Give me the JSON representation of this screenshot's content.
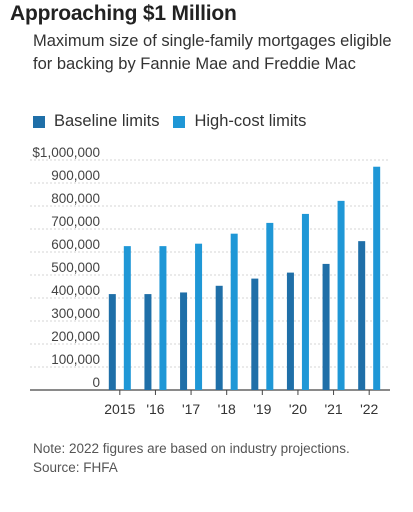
{
  "title": "Approaching $1 Million",
  "subtitle": "Maximum size of single-family mortgages eligible for backing by Fannie Mae and Freddie Mac",
  "note": "Note: 2022 figures are based on industry projections.",
  "source": "Source: FHFA",
  "colors": {
    "baseline": "#1f6fa8",
    "highcost": "#1f97d6",
    "grid": "#d5d5d5",
    "axis": "#444444"
  },
  "chart_data": {
    "type": "bar",
    "categories": [
      "2015",
      "'16",
      "'17",
      "'18",
      "'19",
      "'20",
      "'21",
      "'22"
    ],
    "series": [
      {
        "name": "Baseline limits",
        "values": [
          417000,
          417000,
          424100,
          453100,
          484350,
          510400,
          548250,
          647200
        ]
      },
      {
        "name": "High-cost limits",
        "values": [
          625500,
          625500,
          636150,
          679650,
          726525,
          765600,
          822375,
          970800
        ]
      }
    ],
    "ylim": [
      0,
      1000000
    ],
    "yticks": [
      "0",
      "100,000",
      "200,000",
      "300,000",
      "400,000",
      "500,000",
      "600,000",
      "700,000",
      "800,000",
      "900,000",
      "$1,000,000"
    ],
    "legend_position": "top-left",
    "grid": true
  }
}
